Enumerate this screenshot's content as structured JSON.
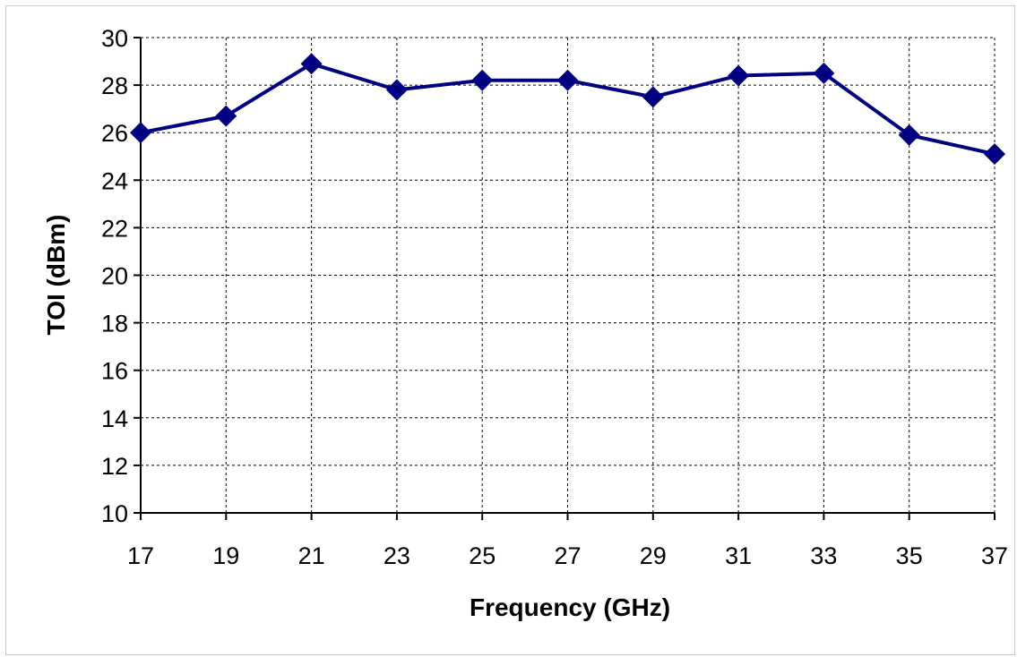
{
  "chart_data": {
    "type": "line",
    "title": "",
    "xlabel": "Frequency (GHz)",
    "ylabel": "TOI (dBm)",
    "x": [
      17,
      19,
      21,
      23,
      25,
      27,
      29,
      31,
      33,
      35,
      37
    ],
    "series": [
      {
        "values": [
          26.0,
          26.7,
          28.9,
          27.8,
          28.2,
          28.2,
          27.5,
          28.4,
          28.5,
          25.9,
          25.1
        ]
      }
    ],
    "xlim": [
      17,
      37
    ],
    "ylim": [
      10,
      30
    ],
    "xticks": [
      "17",
      "19",
      "21",
      "23",
      "25",
      "27",
      "29",
      "31",
      "33",
      "35",
      "37"
    ],
    "yticks": [
      "10",
      "12",
      "14",
      "16",
      "18",
      "20",
      "22",
      "24",
      "26",
      "28",
      "30"
    ],
    "grid": "dashed",
    "legend": "none",
    "marker": "diamond",
    "colors": {
      "series": "#000080",
      "grid": "#000000",
      "axis": "#000000"
    }
  }
}
